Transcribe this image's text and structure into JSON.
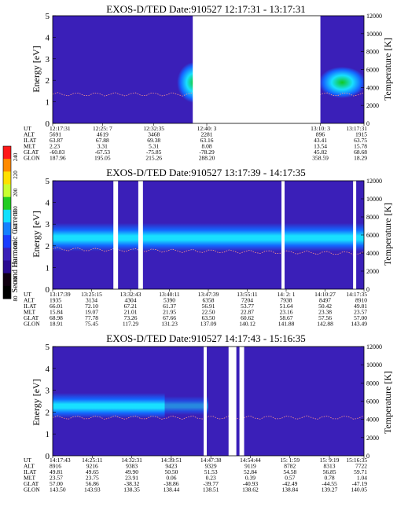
{
  "colors": {
    "background": "#3a1fb8",
    "band_cyan": "#18e0ff",
    "band_mid": "#1466ff",
    "band_green": "#10c820",
    "gap": "#ffffff",
    "trace": "#ff9a8a"
  },
  "colorbar": {
    "label": "Second Harmonic Current",
    "ticks": [
      "240",
      "220",
      "200",
      "180",
      "160",
      "140",
      "120",
      "100",
      "80"
    ],
    "colors": [
      "#ff1818",
      "#ff8a00",
      "#ffe000",
      "#c8ff30",
      "#22cc22",
      "#10e0ff",
      "#1480ff",
      "#1a3cff",
      "#3a1fb8",
      "#2a0a90",
      "#100010",
      "#000000"
    ]
  },
  "chart_data": [
    {
      "type": "heatmap",
      "title": "EXOS-D/TED   Date:910527   12:17:31 - 13:17:31",
      "ylabel": "Energy [eV]",
      "y2label": "Temperature [K]",
      "ylim": [
        0,
        5
      ],
      "y2lim": [
        0,
        12000
      ],
      "yticks": [
        "0",
        "1",
        "2",
        "3",
        "4",
        "5"
      ],
      "y2ticks": [
        "0",
        "2000",
        "4000",
        "6000",
        "8000",
        "10000",
        "12000"
      ],
      "gaps": [
        [
          0.45,
          0.86
        ]
      ],
      "band": {
        "kind": "right_blob",
        "from": 0.33,
        "center_ev": 1.9
      },
      "ephemeris": {
        "labels": [
          "UT",
          "ALT",
          "ILAT",
          "MLT",
          "GLAT",
          "GLON"
        ],
        "columns": [
          {
            "pos": 0.0,
            "vals": [
              "12:17:31",
              "5691",
              "63.87",
              "2.23",
              "-60.83",
              "187.96"
            ]
          },
          {
            "pos": 0.16,
            "vals": [
              "12:25: 7",
              "4619",
              "67.88",
              "3.31",
              "-67.53",
              "195.05"
            ]
          },
          {
            "pos": 0.325,
            "vals": [
              "12:32:35",
              "3468",
              "69.38",
              "5.31",
              "-75.85",
              "215.26"
            ]
          },
          {
            "pos": 0.495,
            "vals": [
              "12:40: 3",
              "2281",
              "63.16",
              "8.08",
              "-78.29",
              "288.20"
            ]
          },
          {
            "pos": 0.86,
            "vals": [
              "13:10: 3",
              "896",
              "43.41",
              "13.54",
              "45.82",
              "358.59"
            ]
          },
          {
            "pos": 1.0,
            "vals": [
              "13:17:31",
              "1915",
              "63.75",
              "15.78",
              "68.68",
              "18.29"
            ]
          }
        ]
      }
    },
    {
      "type": "heatmap",
      "title": "EXOS-D/TED   Date:910527   13:17:39 - 14:17:35",
      "ylabel": "Energy [eV]",
      "y2label": "Temperature [K]",
      "ylim": [
        0,
        5
      ],
      "y2lim": [
        0,
        12000
      ],
      "yticks": [
        "0",
        "1",
        "2",
        "3",
        "4",
        "5"
      ],
      "y2ticks": [
        "0",
        "2000",
        "4000",
        "6000",
        "8000",
        "10000",
        "12000"
      ],
      "gaps": [
        [
          0.195,
          0.21
        ],
        [
          0.275,
          0.29
        ],
        [
          0.735,
          0.745
        ],
        [
          0.965,
          0.975
        ]
      ],
      "band": {
        "kind": "flat",
        "from": 0.0,
        "center_ev": 2.4
      },
      "ephemeris": {
        "labels": [
          "UT",
          "ALT",
          "ILAT",
          "MLT",
          "GLAT",
          "GLON"
        ],
        "columns": [
          {
            "pos": 0.0,
            "vals": [
              "13:17:39",
              "1935",
              "66.01",
              "15.84",
              "68.98",
              "18.91"
            ]
          },
          {
            "pos": 0.125,
            "vals": [
              "13:25:15",
              "3134",
              "72.10",
              "19.07",
              "77.78",
              "75.45"
            ]
          },
          {
            "pos": 0.25,
            "vals": [
              "13:32:43",
              "4304",
              "67.21",
              "21.01",
              "73.26",
              "117.29"
            ]
          },
          {
            "pos": 0.375,
            "vals": [
              "13:40:11",
              "5390",
              "61.37",
              "21.95",
              "67.66",
              "131.23"
            ]
          },
          {
            "pos": 0.5,
            "vals": [
              "13:47:39",
              "6358",
              "56.91",
              "22.50",
              "63.50",
              "137.09"
            ]
          },
          {
            "pos": 0.625,
            "vals": [
              "13:55:11",
              "7204",
              "53.77",
              "22.87",
              "60.62",
              "140.12"
            ]
          },
          {
            "pos": 0.75,
            "vals": [
              "14: 2: 1",
              "7938",
              "51.64",
              "23.16",
              "58.67",
              "141.88"
            ]
          },
          {
            "pos": 0.875,
            "vals": [
              "14:10:27",
              "8497",
              "50.42",
              "23.38",
              "57.56",
              "142.88"
            ]
          },
          {
            "pos": 1.0,
            "vals": [
              "14:17:35",
              "8910",
              "49.81",
              "23.57",
              "57.00",
              "143.49"
            ]
          }
        ]
      }
    },
    {
      "type": "heatmap",
      "title": "EXOS-D/TED   Date:910527   14:17:43 - 15:16:35",
      "ylabel": "Energy [eV]",
      "y2label": "Temperature [K]",
      "ylim": [
        0,
        5
      ],
      "y2lim": [
        0,
        12000
      ],
      "yticks": [
        "0",
        "1",
        "2",
        "3",
        "4",
        "5"
      ],
      "y2ticks": [
        "0",
        "2000",
        "4000",
        "6000",
        "8000",
        "10000",
        "12000"
      ],
      "gaps": [
        [
          0.485,
          0.495
        ],
        [
          0.565,
          0.59
        ],
        [
          0.6,
          0.615
        ]
      ],
      "band": {
        "kind": "fading",
        "from": 0.0,
        "center_ev": 2.3
      },
      "ephemeris": {
        "labels": [
          "UT",
          "ALT",
          "ILAT",
          "MLT",
          "GLAT",
          "GLON"
        ],
        "columns": [
          {
            "pos": 0.0,
            "vals": [
              "14:17:43",
              "8916",
              "49.81",
              "23.57",
              "57.00",
              "143.50"
            ]
          },
          {
            "pos": 0.127,
            "vals": [
              "14:25:11",
              "9216",
              "49.65",
              "23.75",
              "56.86",
              "143.93"
            ]
          },
          {
            "pos": 0.254,
            "vals": [
              "14:32:31",
              "9383",
              "49.90",
              "23.91",
              "-38.32",
              "138.35"
            ]
          },
          {
            "pos": 0.381,
            "vals": [
              "14:39:51",
              "9423",
              "50.50",
              "0.06",
              "-38.86",
              "138.44"
            ]
          },
          {
            "pos": 0.508,
            "vals": [
              "14:47:38",
              "9329",
              "51.53",
              "0.23",
              "-39.77",
              "138.51"
            ]
          },
          {
            "pos": 0.635,
            "vals": [
              "14:54:44",
              "9119",
              "52.84",
              "0.39",
              "-40.93",
              "138.62"
            ]
          },
          {
            "pos": 0.762,
            "vals": [
              "15: 1:59",
              "8782",
              "54.58",
              "0.57",
              "-42.49",
              "138.84"
            ]
          },
          {
            "pos": 0.889,
            "vals": [
              "15: 9:19",
              "8313",
              "56.85",
              "0.78",
              "-44.55",
              "139.27"
            ]
          },
          {
            "pos": 1.0,
            "vals": [
              "15:16:35",
              "7722",
              "59.71",
              "1.04",
              "-47.19",
              "140.05"
            ]
          }
        ]
      }
    }
  ]
}
